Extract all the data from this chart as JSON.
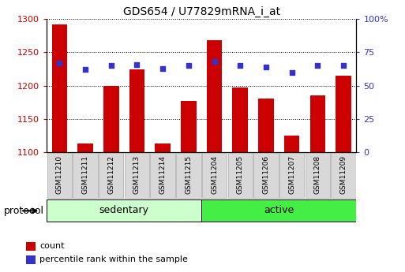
{
  "title": "GDS654 / U77829mRNA_i_at",
  "samples": [
    "GSM11210",
    "GSM11211",
    "GSM11212",
    "GSM11213",
    "GSM11214",
    "GSM11215",
    "GSM11204",
    "GSM11205",
    "GSM11206",
    "GSM11207",
    "GSM11208",
    "GSM11209"
  ],
  "counts": [
    1292,
    1113,
    1200,
    1224,
    1113,
    1177,
    1268,
    1197,
    1181,
    1125,
    1186,
    1215
  ],
  "percentiles": [
    67,
    62,
    65,
    66,
    63,
    65,
    68,
    65,
    64,
    60,
    65,
    65
  ],
  "ylim_left": [
    1100,
    1300
  ],
  "ylim_right": [
    0,
    100
  ],
  "yticks_left": [
    1100,
    1150,
    1200,
    1250,
    1300
  ],
  "yticks_right": [
    0,
    25,
    50,
    75,
    100
  ],
  "yticklabels_right": [
    "0",
    "25",
    "50",
    "75",
    "100%"
  ],
  "bar_color": "#cc0000",
  "dot_color": "#3333cc",
  "groups": [
    {
      "label": "sedentary",
      "start": 0,
      "end": 6,
      "color": "#ccffcc"
    },
    {
      "label": "active",
      "start": 6,
      "end": 12,
      "color": "#44ee44"
    }
  ],
  "group_label": "protocol",
  "legend_items": [
    {
      "label": "count",
      "color": "#cc0000"
    },
    {
      "label": "percentile rank within the sample",
      "color": "#3333cc"
    }
  ],
  "tick_label_color_left": "#cc0000",
  "tick_label_color_right": "#3333cc",
  "sample_cell_color": "#d8d8d8",
  "sample_cell_edge": "#aaaaaa"
}
